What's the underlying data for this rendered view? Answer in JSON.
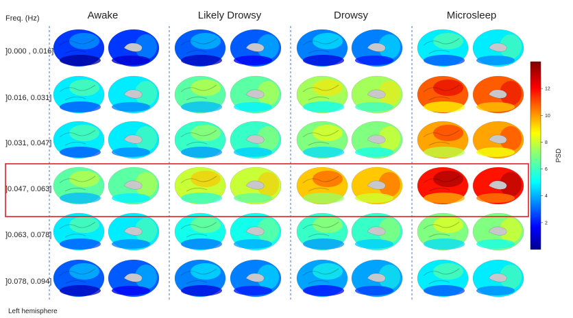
{
  "freq_header": "Freq. (Hz)",
  "conditions": [
    "Awake",
    "Likely Drowsy",
    "Drowsy",
    "Microsleep"
  ],
  "bands": [
    "]0.000 , 0.016]",
    "]0.016, 0.031]",
    "]0.031, 0.047]",
    "]0.047, 0.063]",
    "]0.063, 0.078]",
    "]0.078, 0.094]"
  ],
  "psd_levels": [
    [
      2.5,
      3.0,
      3.5,
      5.0
    ],
    [
      5.0,
      6.5,
      7.5,
      11.0
    ],
    [
      5.0,
      6.0,
      7.0,
      10.0
    ],
    [
      6.5,
      8.0,
      9.5,
      12.0
    ],
    [
      5.0,
      5.5,
      6.0,
      7.0
    ],
    [
      3.0,
      3.5,
      4.0,
      5.0
    ]
  ],
  "highlighted_band_index": 3,
  "highlight_color": "#e02020",
  "colorbar": {
    "label": "PSD",
    "min": 0,
    "max": 14,
    "ticks": [
      "2",
      "4",
      "6",
      "8",
      "10",
      "12"
    ],
    "colormap": "jet"
  },
  "footer": "Left hemisphere"
}
